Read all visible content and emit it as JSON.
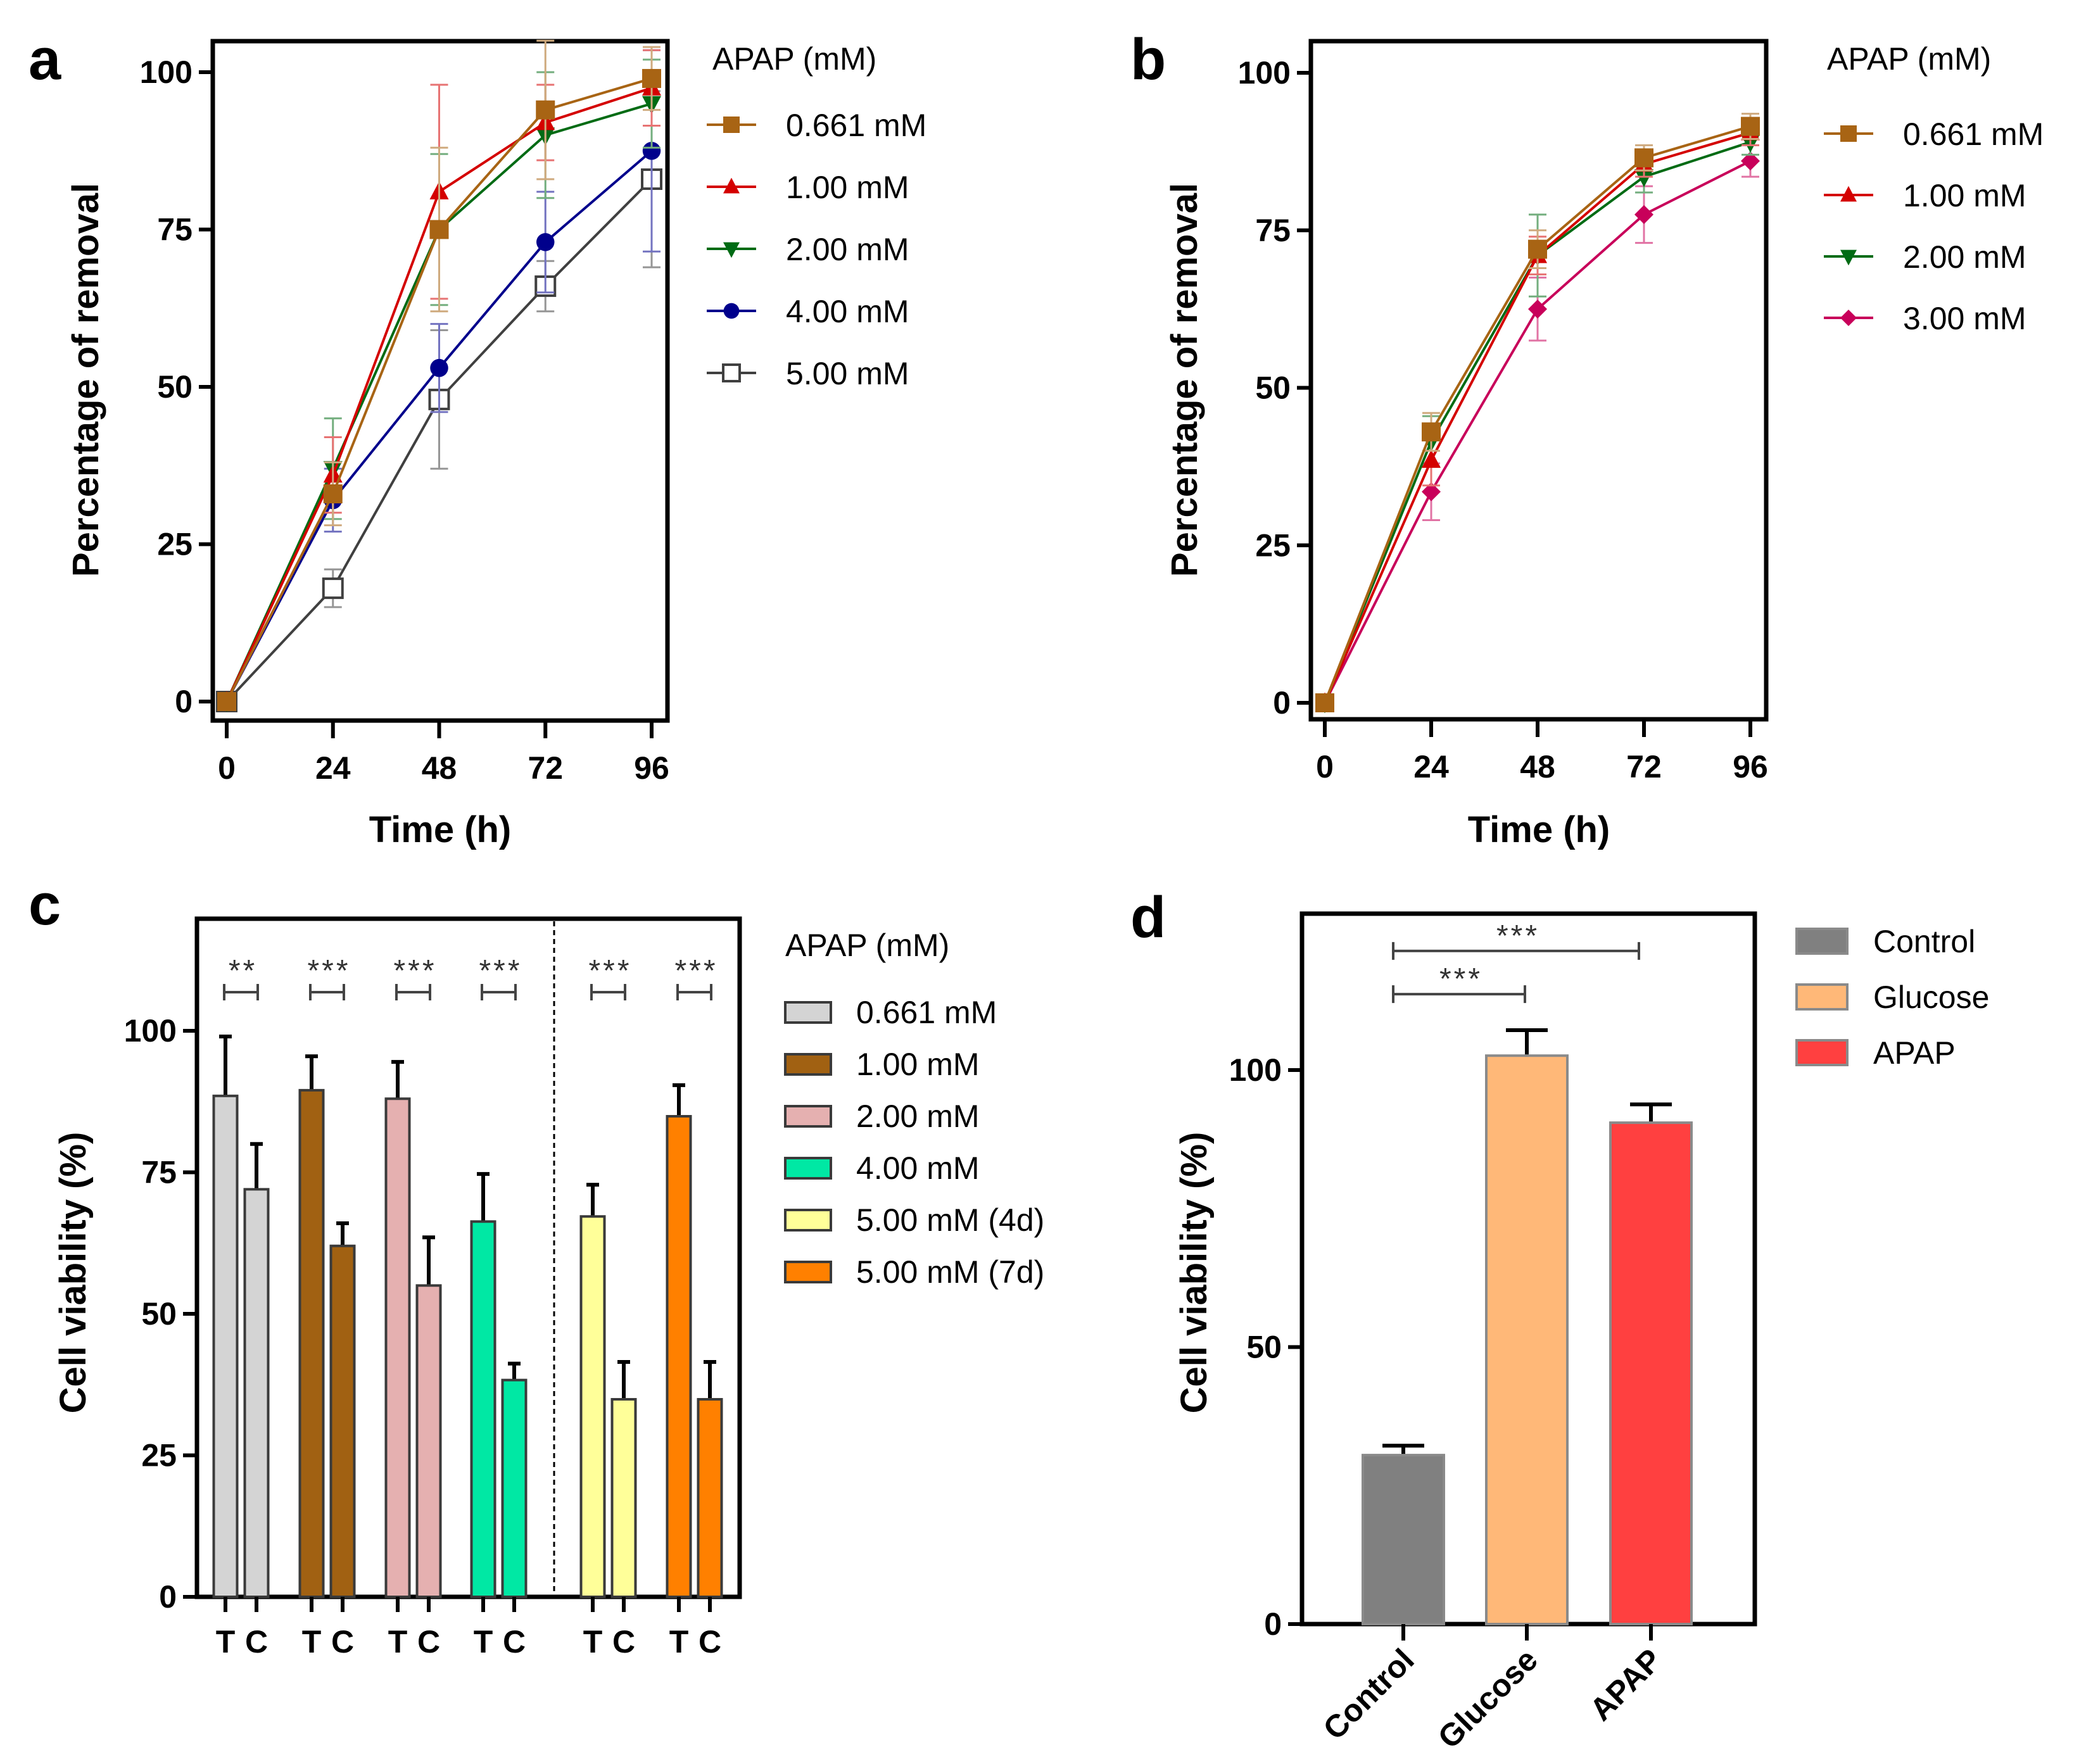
{
  "figure": {
    "panels": [
      "a",
      "b",
      "c",
      "d"
    ]
  },
  "chart_data": [
    {
      "id": "a",
      "type": "line",
      "panel_label": "a",
      "title": "",
      "xlabel": "Time (h)",
      "ylabel": "Percentage of removal",
      "x": [
        0,
        24,
        48,
        72,
        96
      ],
      "xticks": [
        "0",
        "24",
        "48",
        "72",
        "96"
      ],
      "yticks": [
        "0",
        "25",
        "50",
        "75",
        "100"
      ],
      "xlim": [
        -1.5,
        97.5
      ],
      "ylim": [
        -3,
        105
      ],
      "grid": false,
      "legend_title": "APAP (mM)",
      "legend_position": "right",
      "series": [
        {
          "name": "0.661 mM",
          "color": "#A86414",
          "marker": "square",
          "values": [
            0,
            33,
            75,
            94,
            99
          ],
          "err": [
            0,
            5,
            13,
            11,
            5
          ]
        },
        {
          "name": "1.00 mM",
          "color": "#D40000",
          "marker": "triangle-up",
          "values": [
            0,
            36,
            81,
            92,
            97.5
          ],
          "err": [
            0,
            6,
            17,
            6,
            6
          ]
        },
        {
          "name": "2.00 mM",
          "color": "#006B14",
          "marker": "triangle-down",
          "values": [
            0,
            37,
            75,
            90,
            95
          ],
          "err": [
            0,
            8,
            12,
            10,
            7
          ]
        },
        {
          "name": "4.00 mM",
          "color": "#00008C",
          "marker": "circle",
          "values": [
            0,
            32,
            53,
            73,
            87.5
          ],
          "err": [
            0,
            5,
            7,
            8,
            16
          ]
        },
        {
          "name": "5.00 mM",
          "color": "#404040",
          "marker": "open-square",
          "values": [
            0,
            18,
            48,
            66,
            83
          ],
          "err": [
            0,
            3,
            11,
            4,
            14
          ]
        }
      ]
    },
    {
      "id": "b",
      "type": "line",
      "panel_label": "b",
      "title": "",
      "xlabel": "Time (h)",
      "ylabel": "Percentage of removal",
      "x": [
        0,
        24,
        48,
        72,
        96
      ],
      "xticks": [
        "0",
        "24",
        "48",
        "72",
        "96"
      ],
      "yticks": [
        "0",
        "25",
        "50",
        "75",
        "100"
      ],
      "xlim": [
        -1.5,
        97.5
      ],
      "ylim": [
        -3,
        105
      ],
      "grid": false,
      "legend_title": "APAP (mM)",
      "legend_position": "right",
      "series": [
        {
          "name": "0.661 mM",
          "color": "#A86414",
          "marker": "square",
          "values": [
            0,
            43,
            72,
            86.5,
            91.5
          ],
          "err": [
            0,
            3,
            3,
            2,
            2
          ]
        },
        {
          "name": "1.00 mM",
          "color": "#D40000",
          "marker": "triangle-up",
          "values": [
            0,
            38.5,
            71,
            85.5,
            90.5
          ],
          "err": [
            0,
            4,
            3,
            2,
            2
          ]
        },
        {
          "name": "2.00 mM",
          "color": "#006B14",
          "marker": "triangle-down",
          "values": [
            0,
            41.5,
            71,
            83.5,
            89
          ],
          "err": [
            0,
            4,
            6.5,
            2.5,
            2
          ]
        },
        {
          "name": "3.00 mM",
          "color": "#C8005A",
          "marker": "diamond",
          "values": [
            0,
            33.5,
            62.5,
            77.5,
            86
          ],
          "err": [
            0,
            4.5,
            5,
            4.5,
            2.5
          ]
        }
      ]
    },
    {
      "id": "c",
      "type": "bar",
      "panel_label": "c",
      "title": "",
      "xlabel": "",
      "ylabel": "Cell viability (%)",
      "yticks": [
        "0",
        "25",
        "50",
        "75",
        "100"
      ],
      "ylim": [
        0,
        120
      ],
      "grid": false,
      "legend_title": "APAP (mM)",
      "legend_position": "right",
      "bar_labels": [
        "T",
        "C"
      ],
      "groups": [
        {
          "name": "0.661 mM",
          "color": "#D4D4D4",
          "T": 88.5,
          "T_err": 10.5,
          "C": 72,
          "C_err": 8,
          "significance": "**"
        },
        {
          "name": "1.00 mM",
          "color": "#A16112",
          "T": 89.5,
          "T_err": 6,
          "C": 62,
          "C_err": 4,
          "significance": "***"
        },
        {
          "name": "2.00 mM",
          "color": "#E5B0B0",
          "T": 88,
          "T_err": 6.5,
          "C": 55,
          "C_err": 8.5,
          "significance": "***"
        },
        {
          "name": "4.00 mM",
          "color": "#00E8A4",
          "T": 66.3,
          "T_err": 8.4,
          "C": 38.3,
          "C_err": 2.9,
          "significance": "***"
        },
        {
          "name": "5.00 mM (4d)",
          "color": "#FFFF99",
          "T": 67.2,
          "T_err": 5.6,
          "C": 34.9,
          "C_err": 6.6,
          "significance": "***"
        },
        {
          "name": "5.00 mM (7d)",
          "color": "#FF8000",
          "T": 84.9,
          "T_err": 5.5,
          "C": 34.9,
          "C_err": 6.6,
          "significance": "***"
        }
      ],
      "separator": "dashed line between 4.00 mM and 5.00 mM (4d) groups"
    },
    {
      "id": "d",
      "type": "bar",
      "panel_label": "d",
      "title": "",
      "xlabel": "",
      "ylabel": "Cell viability (%)",
      "categories": [
        "Control",
        "Glucose",
        "APAP"
      ],
      "values": [
        30.5,
        102.6,
        90.5
      ],
      "err": [
        1.7,
        4.6,
        3.3
      ],
      "colors": [
        "#808080",
        "#FFB878",
        "#FF4040"
      ],
      "yticks": [
        "0",
        "50",
        "100"
      ],
      "ylim": [
        0,
        128
      ],
      "grid": false,
      "legend_position": "right",
      "legend": [
        "Control",
        "Glucose",
        "APAP"
      ],
      "significance": [
        {
          "from": "Control",
          "to": "Glucose",
          "label": "***",
          "level": 113.7
        },
        {
          "from": "Control",
          "to": "APAP",
          "label": "***",
          "level": 121.5
        }
      ]
    }
  ]
}
